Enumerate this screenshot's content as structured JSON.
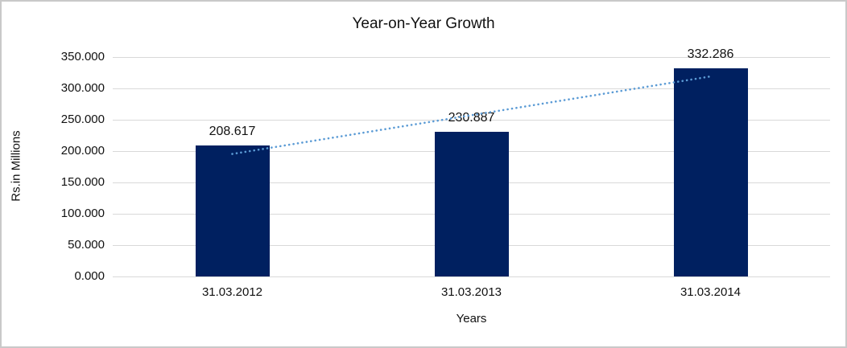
{
  "chart_data": {
    "type": "bar",
    "title": "Year-on-Year Growth",
    "xlabel": "Years",
    "ylabel": "Rs.in Millions",
    "categories": [
      "31.03.2012",
      "31.03.2013",
      "31.03.2014"
    ],
    "values": [
      208.617,
      230.887,
      332.286
    ],
    "data_labels": [
      "208.617",
      "230.887",
      "332.286"
    ],
    "ylim": [
      0,
      350
    ],
    "ytick_step": 50,
    "ytick_labels": [
      "0.000",
      "50.000",
      "100.000",
      "150.000",
      "200.000",
      "250.000",
      "300.000",
      "350.000"
    ],
    "grid": true,
    "legend": "none",
    "bar_color": "#002060",
    "gridline_color": "#d9d9d9",
    "text_color": "#111111",
    "trendline": {
      "type": "linear",
      "style": "dotted",
      "color": "#5b9bd5"
    }
  }
}
